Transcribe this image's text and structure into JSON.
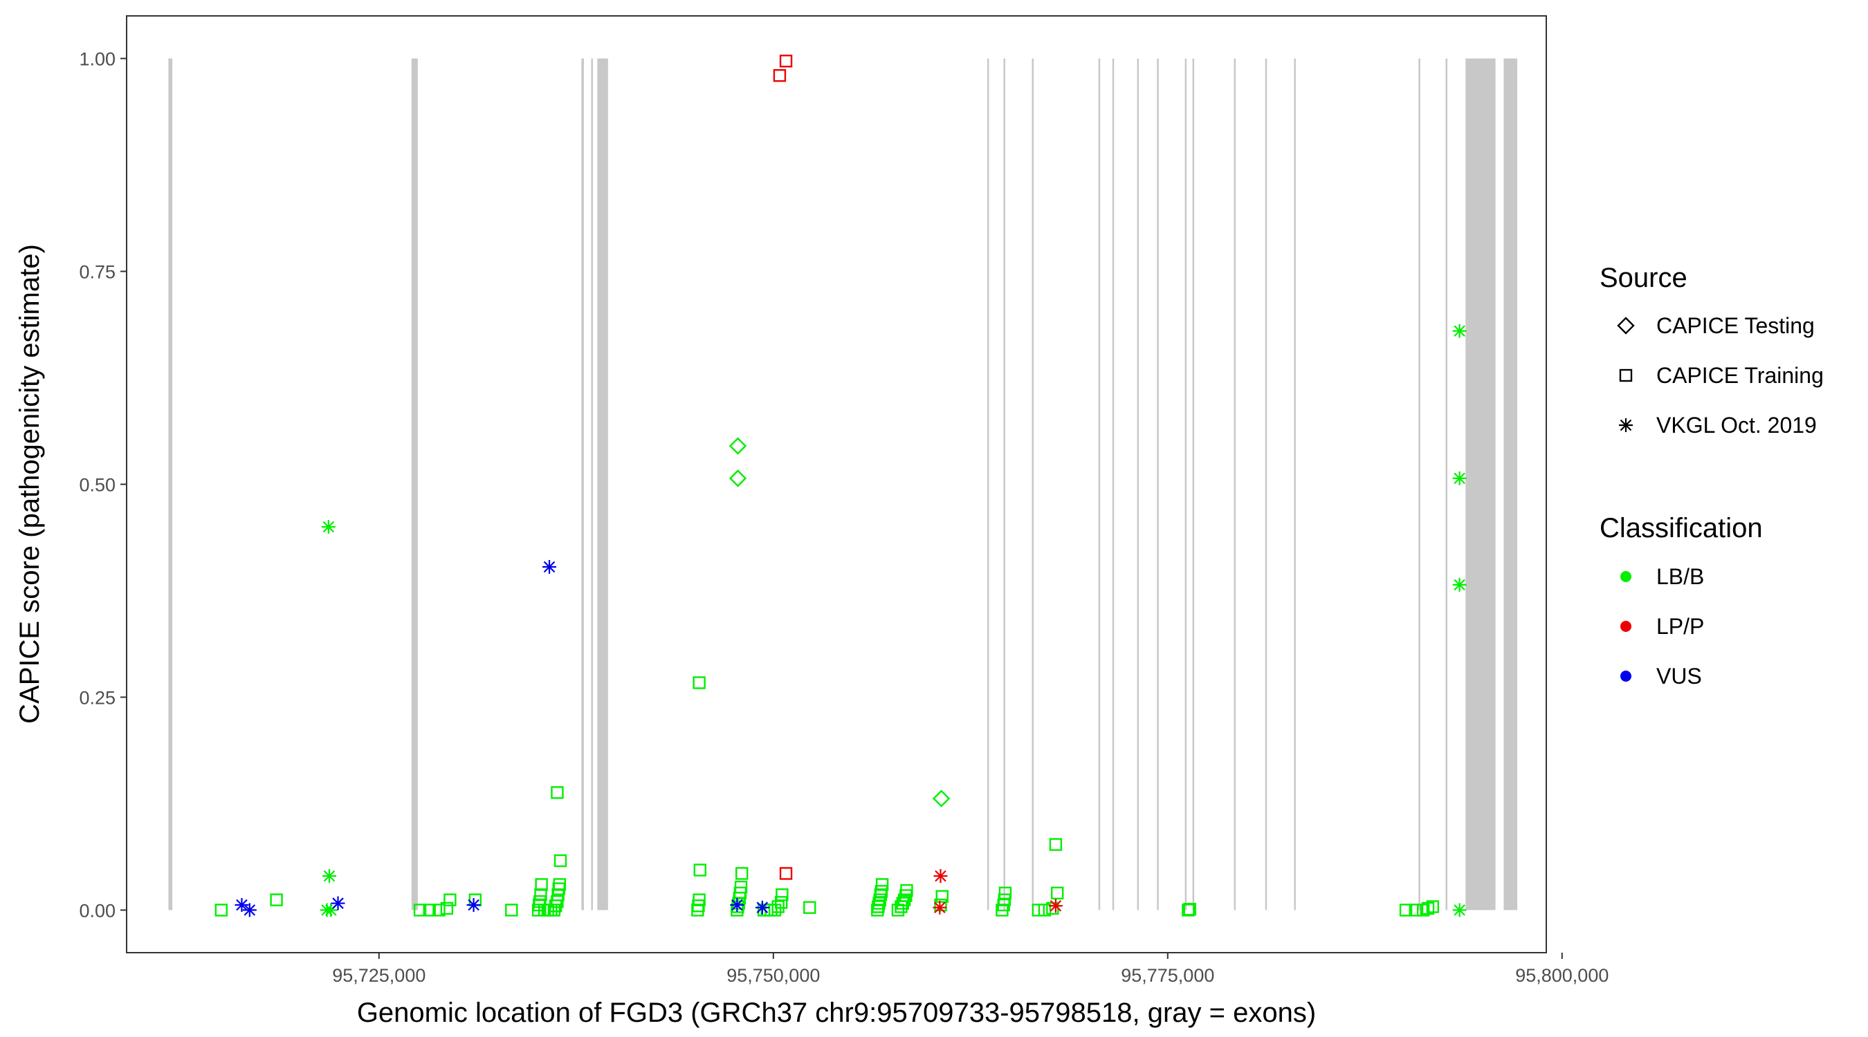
{
  "chart_data": {
    "type": "scatter",
    "xlabel": "Genomic location of FGD3 (GRCh37 chr9:95709733-95798518, gray = exons)",
    "ylabel": "CAPICE score (pathogenicity estimate)",
    "xlim": [
      95709000,
      95799000
    ],
    "ylim": [
      -0.05,
      1.05
    ],
    "x_ticks": [
      95725000,
      95750000,
      95775000,
      95800000
    ],
    "x_tick_labels": [
      "95,725,000",
      "95,750,000",
      "95,775,000",
      "95,800,000"
    ],
    "y_ticks": [
      0,
      0.25,
      0.5,
      0.75,
      1.0
    ],
    "y_tick_labels": [
      "0.00",
      "0.25",
      "0.50",
      "0.75",
      "1.00"
    ],
    "grid": false,
    "legend_position": "right",
    "colors": {
      "LB/B": "#00ee00",
      "LP/P": "#ee0000",
      "VUS": "#0000ee",
      "exon": "#c8c8c8",
      "frame": "#333333"
    },
    "exons": [
      [
        95711650,
        95711900
      ],
      [
        95727060,
        95727460
      ],
      [
        95737830,
        95737990
      ],
      [
        95738450,
        95738560
      ],
      [
        95738840,
        95739520
      ],
      [
        95763560,
        95763640
      ],
      [
        95764590,
        95764670
      ],
      [
        95766390,
        95766480
      ],
      [
        95770610,
        95770700
      ],
      [
        95771490,
        95771570
      ],
      [
        95773060,
        95773140
      ],
      [
        95774320,
        95774400
      ],
      [
        95776090,
        95776170
      ],
      [
        95776570,
        95776650
      ],
      [
        95779200,
        95779280
      ],
      [
        95781180,
        95781260
      ],
      [
        95783010,
        95783090
      ],
      [
        95790900,
        95790980
      ],
      [
        95792620,
        95792700
      ],
      [
        95793880,
        95795780
      ],
      [
        95796300,
        95797160
      ]
    ],
    "legends": [
      {
        "title": "Source",
        "items": [
          {
            "label": "CAPICE Testing",
            "shape": "diamond"
          },
          {
            "label": "CAPICE Training",
            "shape": "square"
          },
          {
            "label": "VKGL Oct. 2019",
            "shape": "asterisk"
          }
        ]
      },
      {
        "title": "Classification",
        "items": [
          {
            "label": "LB/B",
            "color": "#00ee00"
          },
          {
            "label": "LP/P",
            "color": "#ee0000"
          },
          {
            "label": "VUS",
            "color": "#0000ee"
          }
        ]
      }
    ],
    "series": [
      {
        "source": "CAPICE Training",
        "classification": "LB/B",
        "shape": "square",
        "color": "#00ee00",
        "points": [
          [
            95715000,
            0.0
          ],
          [
            95718500,
            0.012
          ],
          [
            95727600,
            0.0
          ],
          [
            95728200,
            0.0
          ],
          [
            95728800,
            0.0
          ],
          [
            95729300,
            0.002
          ],
          [
            95729500,
            0.012
          ],
          [
            95731100,
            0.012
          ],
          [
            95733400,
            0.0
          ],
          [
            95735100,
            0.0
          ],
          [
            95735150,
            0.006
          ],
          [
            95735200,
            0.01
          ],
          [
            95735250,
            0.018
          ],
          [
            95735300,
            0.03
          ],
          [
            95735500,
            0.0
          ],
          [
            95735700,
            0.0
          ],
          [
            95735900,
            0.0
          ],
          [
            95736100,
            0.0
          ],
          [
            95736200,
            0.005
          ],
          [
            95736300,
            0.01
          ],
          [
            95736350,
            0.018
          ],
          [
            95736400,
            0.025
          ],
          [
            95736450,
            0.03
          ],
          [
            95736500,
            0.058
          ],
          [
            95736300,
            0.138
          ],
          [
            95745200,
            0.0
          ],
          [
            95745250,
            0.005
          ],
          [
            95745300,
            0.012
          ],
          [
            95745350,
            0.047
          ],
          [
            95745300,
            0.267
          ],
          [
            95747700,
            0.0
          ],
          [
            95747750,
            0.004
          ],
          [
            95747800,
            0.008
          ],
          [
            95747850,
            0.014
          ],
          [
            95747900,
            0.02
          ],
          [
            95747950,
            0.027
          ],
          [
            95748000,
            0.043
          ],
          [
            95749400,
            0.0
          ],
          [
            95749600,
            0.0
          ],
          [
            95749850,
            0.0
          ],
          [
            95750100,
            0.0
          ],
          [
            95750300,
            0.004
          ],
          [
            95750500,
            0.009
          ],
          [
            95750550,
            0.018
          ],
          [
            95752300,
            0.003
          ],
          [
            95756600,
            0.0
          ],
          [
            95756650,
            0.004
          ],
          [
            95756700,
            0.008
          ],
          [
            95756750,
            0.012
          ],
          [
            95756800,
            0.018
          ],
          [
            95756850,
            0.022
          ],
          [
            95756900,
            0.03
          ],
          [
            95757900,
            0.0
          ],
          [
            95758100,
            0.004
          ],
          [
            95758200,
            0.008
          ],
          [
            95758300,
            0.012
          ],
          [
            95758400,
            0.017
          ],
          [
            95758450,
            0.023
          ],
          [
            95760600,
            0.006
          ],
          [
            95760700,
            0.016
          ],
          [
            95764500,
            0.0
          ],
          [
            95764600,
            0.006
          ],
          [
            95764650,
            0.012
          ],
          [
            95764700,
            0.02
          ],
          [
            95766800,
            0.0
          ],
          [
            95767200,
            0.0
          ],
          [
            95767700,
            0.002
          ],
          [
            95768000,
            0.02
          ],
          [
            95767900,
            0.077
          ],
          [
            95776300,
            0.0
          ],
          [
            95776400,
            0.001
          ],
          [
            95790100,
            0.0
          ],
          [
            95790700,
            0.0
          ],
          [
            95791200,
            0.0
          ],
          [
            95791500,
            0.002
          ],
          [
            95791800,
            0.004
          ]
        ]
      },
      {
        "source": "CAPICE Training",
        "classification": "LP/P",
        "shape": "square",
        "color": "#ee0000",
        "points": [
          [
            95750400,
            0.98
          ],
          [
            95750800,
            0.997
          ],
          [
            95750800,
            0.043
          ]
        ]
      },
      {
        "source": "CAPICE Testing",
        "classification": "LB/B",
        "shape": "diamond",
        "color": "#00ee00",
        "points": [
          [
            95747750,
            0.545
          ],
          [
            95747750,
            0.507
          ],
          [
            95760650,
            0.131
          ]
        ]
      },
      {
        "source": "VKGL Oct. 2019",
        "classification": "LB/B",
        "shape": "asterisk",
        "color": "#00ee00",
        "points": [
          [
            95721800,
            0.45
          ],
          [
            95721850,
            0.04
          ],
          [
            95721700,
            0.0
          ],
          [
            95721950,
            0.0
          ],
          [
            95793500,
            0.68
          ],
          [
            95793500,
            0.507
          ],
          [
            95793500,
            0.382
          ],
          [
            95793500,
            0.0
          ]
        ]
      },
      {
        "source": "VKGL Oct. 2019",
        "classification": "LP/P",
        "shape": "asterisk",
        "color": "#ee0000",
        "points": [
          [
            95760600,
            0.04
          ],
          [
            95760550,
            0.003
          ],
          [
            95767900,
            0.005
          ]
        ]
      },
      {
        "source": "VKGL Oct. 2019",
        "classification": "VUS",
        "shape": "asterisk",
        "color": "#0000ee",
        "points": [
          [
            95716300,
            0.006
          ],
          [
            95716800,
            0.0
          ],
          [
            95722400,
            0.008
          ],
          [
            95731000,
            0.006
          ],
          [
            95735800,
            0.403
          ],
          [
            95747700,
            0.006
          ],
          [
            95749300,
            0.003
          ]
        ]
      }
    ]
  }
}
